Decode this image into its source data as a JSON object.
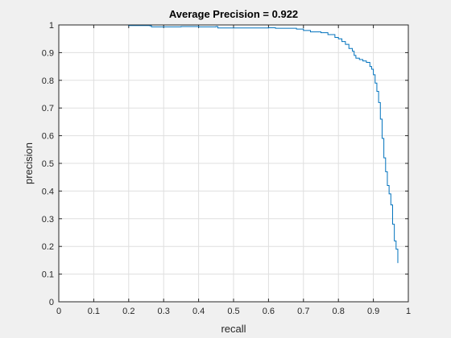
{
  "chart_data": {
    "type": "line",
    "title": "Average Precision = 0.922",
    "xlabel": "recall",
    "ylabel": "precision",
    "xlim": [
      0,
      1
    ],
    "ylim": [
      0,
      1
    ],
    "xticks": [
      0,
      0.1,
      0.2,
      0.3,
      0.4,
      0.5,
      0.6,
      0.7,
      0.8,
      0.9,
      1
    ],
    "xtick_labels": [
      "0",
      "0.1",
      "0.2",
      "0.3",
      "0.4",
      "0.5",
      "0.6",
      "0.7",
      "0.8",
      "0.9",
      "1"
    ],
    "yticks": [
      0,
      0.1,
      0.2,
      0.3,
      0.4,
      0.5,
      0.6,
      0.7,
      0.8,
      0.9,
      1
    ],
    "ytick_labels": [
      "0",
      "0.1",
      "0.2",
      "0.3",
      "0.4",
      "0.5",
      "0.6",
      "0.7",
      "0.8",
      "0.9",
      "1"
    ],
    "grid": true,
    "legend": "none",
    "line_color": "#0072bd",
    "series": [
      {
        "x": [
          0,
          0.05,
          0.1,
          0.2,
          0.26,
          0.265,
          0.3,
          0.35,
          0.4,
          0.45,
          0.455,
          0.5,
          0.55,
          0.6,
          0.62,
          0.65,
          0.68,
          0.7,
          0.72,
          0.75,
          0.77,
          0.79,
          0.8,
          0.81,
          0.82,
          0.83,
          0.84,
          0.845,
          0.85,
          0.86,
          0.87,
          0.88,
          0.89,
          0.895,
          0.9,
          0.905,
          0.91,
          0.915,
          0.92,
          0.925,
          0.93,
          0.935,
          0.94,
          0.945,
          0.95,
          0.955,
          0.96,
          0.965,
          0.97
        ],
        "y": [
          1.0,
          1.0,
          1.0,
          0.998,
          0.997,
          0.993,
          0.993,
          0.994,
          0.993,
          0.994,
          0.989,
          0.989,
          0.989,
          0.99,
          0.988,
          0.988,
          0.985,
          0.98,
          0.975,
          0.972,
          0.965,
          0.955,
          0.95,
          0.94,
          0.93,
          0.915,
          0.905,
          0.89,
          0.88,
          0.875,
          0.87,
          0.865,
          0.85,
          0.84,
          0.82,
          0.79,
          0.76,
          0.72,
          0.66,
          0.59,
          0.52,
          0.47,
          0.42,
          0.39,
          0.35,
          0.28,
          0.22,
          0.19,
          0.14
        ]
      }
    ]
  }
}
